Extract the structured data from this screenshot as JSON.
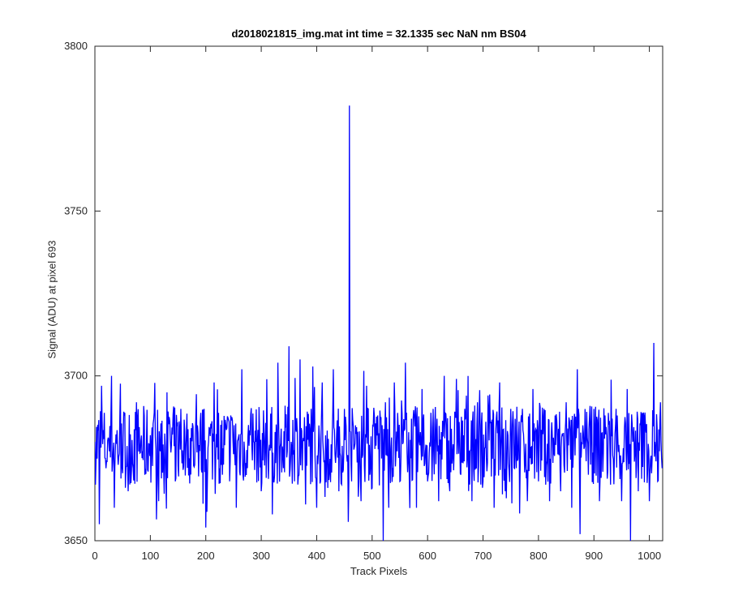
{
  "chart_data": {
    "type": "line",
    "title": "d2018021815_img.mat int time = 32.1335 sec  NaN nm BS04",
    "xlabel": "Track Pixels",
    "ylabel": "Signal (ADU) at pixel 693",
    "xlim": [
      0,
      1024
    ],
    "ylim": [
      3650,
      3800
    ],
    "xticks": [
      0,
      100,
      200,
      300,
      400,
      500,
      600,
      700,
      800,
      900,
      1000
    ],
    "xtick_labels": [
      "0",
      "100",
      "200",
      "300",
      "400",
      "500",
      "600",
      "700",
      "800",
      "900",
      "1000"
    ],
    "yticks": [
      3650,
      3700,
      3750,
      3800
    ],
    "ytick_labels": [
      "3650",
      "3700",
      "3750",
      "3800"
    ],
    "grid": false,
    "line_color": "#0000ff",
    "series": [
      {
        "x": [
          0,
          8,
          12,
          20,
          30,
          35,
          45,
          60,
          75,
          90,
          100,
          115,
          130,
          145,
          155,
          170,
          185,
          200,
          205,
          215,
          230,
          245,
          255,
          265,
          275,
          290,
          300,
          310,
          320,
          330,
          340,
          350,
          360,
          370,
          380,
          390,
          400,
          410,
          420,
          430,
          440,
          450,
          455,
          459,
          461,
          463,
          470,
          480,
          490,
          500,
          510,
          520,
          524,
          530,
          540,
          550,
          560,
          570,
          580,
          590,
          600,
          610,
          620,
          630,
          640,
          650,
          660,
          670,
          680,
          690,
          700,
          710,
          720,
          730,
          740,
          750,
          760,
          770,
          780,
          790,
          800,
          810,
          820,
          830,
          840,
          850,
          860,
          870,
          875,
          880,
          890,
          900,
          910,
          920,
          930,
          940,
          950,
          960,
          966,
          970,
          980,
          990,
          1000,
          1008,
          1010,
          1015,
          1020,
          1023
        ],
        "values": [
          3680,
          3655,
          3697,
          3672,
          3700,
          3660,
          3688,
          3665,
          3692,
          3670,
          3682,
          3662,
          3695,
          3668,
          3690,
          3675,
          3685,
          3654,
          3680,
          3698,
          3670,
          3688,
          3660,
          3702,
          3672,
          3680,
          3665,
          3699,
          3658,
          3704,
          3672,
          3709,
          3668,
          3705,
          3661,
          3690,
          3660,
          3698,
          3666,
          3702,
          3665,
          3690,
          3674,
          3782,
          3683,
          3668,
          3685,
          3662,
          3697,
          3666,
          3688,
          3650,
          3692,
          3660,
          3698,
          3668,
          3704,
          3675,
          3660,
          3696,
          3668,
          3690,
          3662,
          3700,
          3665,
          3688,
          3670,
          3694,
          3662,
          3692,
          3668,
          3690,
          3660,
          3698,
          3665,
          3690,
          3672,
          3686,
          3662,
          3696,
          3668,
          3690,
          3662,
          3688,
          3665,
          3692,
          3660,
          3702,
          3652,
          3685,
          3670,
          3690,
          3662,
          3688,
          3667,
          3690,
          3662,
          3696,
          3650,
          3680,
          3665,
          3688,
          3662,
          3710,
          3680,
          3668,
          3692,
          3672
        ]
      }
    ]
  }
}
